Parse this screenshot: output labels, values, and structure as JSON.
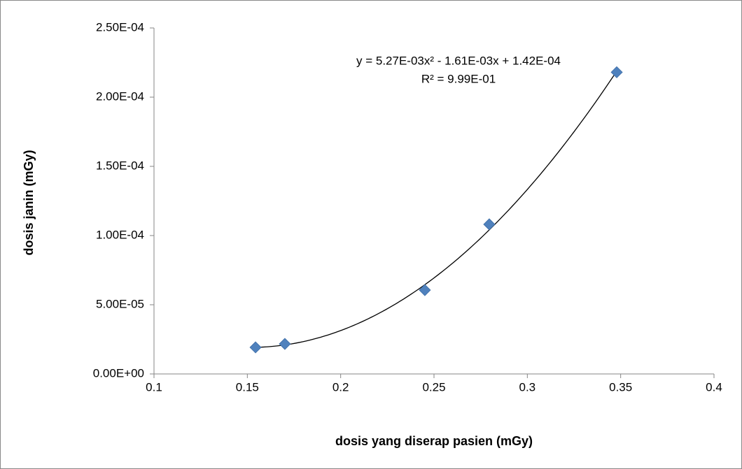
{
  "chart_data": {
    "type": "scatter",
    "x_label": "dosis yang diserap pasien (mGy)",
    "y_label": "dosis janin (mGy)",
    "x": [
      0.1544,
      0.1701,
      0.2451,
      0.2796,
      0.3479
    ],
    "values": [
      1.92e-05,
      2.17e-05,
      6.06e-05,
      0.0001081,
      0.000218
    ],
    "color": "#4f81bd",
    "xlim": [
      0.1,
      0.4
    ],
    "xticks": [
      0.1,
      0.15,
      0.2,
      0.25,
      0.3,
      0.35,
      0.4
    ],
    "ylim": [
      0,
      0.00025
    ],
    "yticks": [
      {
        "value": 0,
        "label": "0.00E+00"
      },
      {
        "value": 5e-05,
        "label": "5.00E-05"
      },
      {
        "value": 0.0001,
        "label": "1.00E-04"
      },
      {
        "value": 0.00015,
        "label": "1.50E-04"
      },
      {
        "value": 0.0002,
        "label": "2.00E-04"
      },
      {
        "value": 0.00025,
        "label": "2.50E-04"
      }
    ],
    "grid": false,
    "trendline": {
      "type": "polynomial",
      "degree": 2,
      "color": "#000000",
      "equation": "y = 5.27E-03x² - 1.61E-03x + 1.42E-04",
      "r_squared": "R² = 9.99E-01"
    }
  }
}
